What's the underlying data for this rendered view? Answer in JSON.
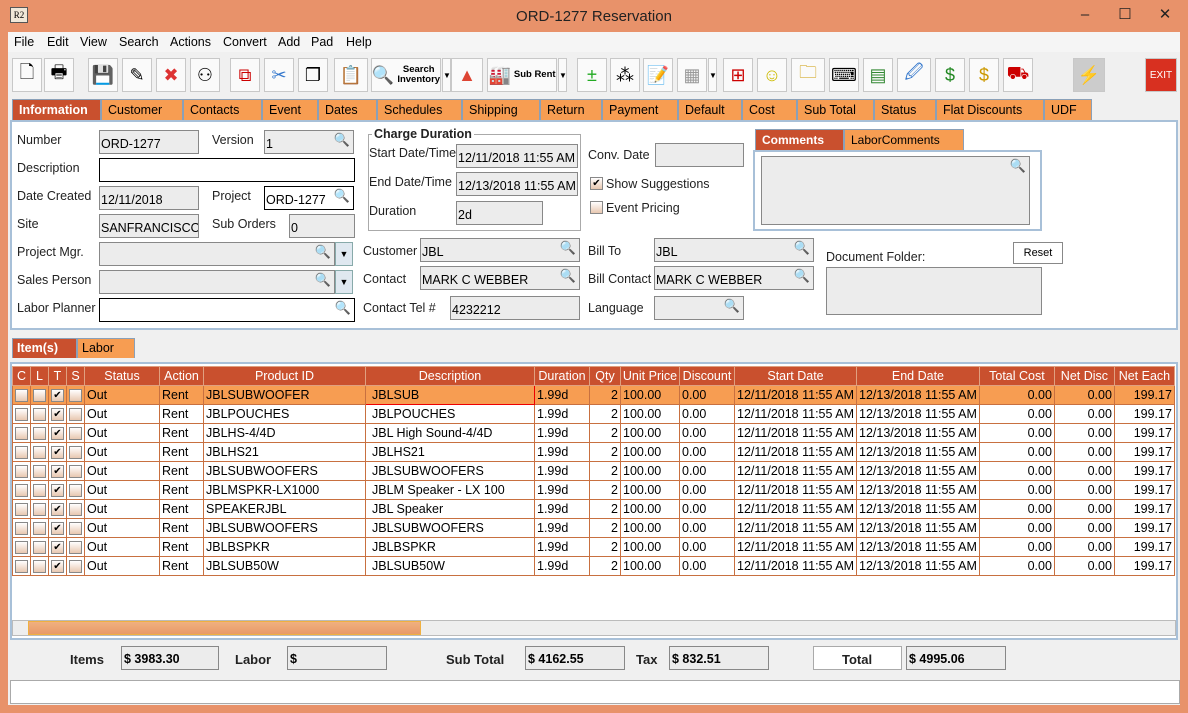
{
  "window": {
    "title": "ORD-1277 Reservation",
    "app_icon": "R2"
  },
  "menu": [
    "File",
    "Edit",
    "View",
    "Search",
    "Actions",
    "Convert",
    "Add",
    "Pad",
    "Help"
  ],
  "toolbar": [
    {
      "icon": "new-document-icon",
      "glyph": "🗋"
    },
    {
      "icon": "print-icon",
      "glyph": "🖶"
    },
    {
      "icon": "save-icon",
      "glyph": "💾"
    },
    {
      "icon": "edit-pencil-icon",
      "glyph": "✎"
    },
    {
      "icon": "delete-icon",
      "glyph": "✖",
      "color": "#d33"
    },
    {
      "icon": "binoculars-icon",
      "glyph": "⚇"
    },
    {
      "icon": "copy-arrow-icon",
      "glyph": "⧉",
      "color": "#c00"
    },
    {
      "icon": "cut-scissors-icon",
      "glyph": "✂",
      "color": "#37c"
    },
    {
      "icon": "copy-icon",
      "glyph": "❐"
    },
    {
      "icon": "paste-icon",
      "glyph": "📋"
    },
    {
      "icon": "search-inventory-icon",
      "glyph": "🔍",
      "label": "Search Inventory",
      "dropdown": true
    },
    {
      "icon": "shapes-icon",
      "glyph": "▲",
      "color": "#d43"
    },
    {
      "icon": "sub-rent-icon",
      "glyph": "🏭",
      "label": "Sub Rent",
      "dropdown": true
    },
    {
      "icon": "add-remove-icon",
      "glyph": "±",
      "color": "#2a2"
    },
    {
      "icon": "help-balls-icon",
      "glyph": "⁂"
    },
    {
      "icon": "notepad-icon",
      "glyph": "📝"
    },
    {
      "icon": "calendar-icon",
      "glyph": "▦",
      "color": "#999",
      "dropdown": true
    },
    {
      "icon": "hierarchy-icon",
      "glyph": "⊞",
      "color": "#c00"
    },
    {
      "icon": "smiley-icon",
      "glyph": "☺",
      "color": "#cb0"
    },
    {
      "icon": "folder-clock-icon",
      "glyph": "🗀",
      "color": "#c90"
    },
    {
      "icon": "key-icon",
      "glyph": "⌨"
    },
    {
      "icon": "stacks-icon",
      "glyph": "▤",
      "color": "#383"
    },
    {
      "icon": "document-edit-icon",
      "glyph": "🖉",
      "color": "#37c"
    },
    {
      "icon": "money-forward-icon",
      "glyph": "$",
      "color": "#282"
    },
    {
      "icon": "money-note-icon",
      "glyph": "$",
      "color": "#c90"
    },
    {
      "icon": "truck-icon",
      "glyph": "⛟",
      "color": "#c00"
    },
    {
      "icon": "lightning-icon",
      "glyph": "⚡",
      "color": "#cb0"
    },
    {
      "icon": "exit-icon",
      "glyph": "EXIT",
      "color": "#fff"
    }
  ],
  "tabs": [
    "Information",
    "Customer",
    "Contacts",
    "Event",
    "Dates",
    "Schedules",
    "Shipping",
    "Return",
    "Payment",
    "Default",
    "Cost",
    "Sub Total",
    "Status",
    "Flat Discounts",
    "UDF"
  ],
  "info": {
    "number_label": "Number",
    "number": "ORD-1277",
    "version_label": "Version",
    "version": "1",
    "description_label": "Description",
    "description": "",
    "date_created_label": "Date Created",
    "date_created": "12/11/2018",
    "project_label": "Project",
    "project": "ORD-1277",
    "site_label": "Site",
    "site": "SANFRANCISCO",
    "sub_orders_label": "Sub Orders",
    "sub_orders": "0",
    "project_mgr_label": "Project Mgr.",
    "project_mgr": "",
    "sales_person_label": "Sales Person",
    "sales_person": "",
    "labor_planner_label": "Labor Planner",
    "labor_planner": "",
    "charge_duration_title": "Charge Duration",
    "start_label": "Start Date/Time",
    "start": "12/11/2018 11:55 AM",
    "end_label": "End Date/Time",
    "end": "12/13/2018 11:55 AM",
    "duration_label": "Duration",
    "duration": "2d",
    "conv_date_label": "Conv. Date",
    "conv_date": "",
    "show_suggestions_label": "Show Suggestions",
    "show_suggestions": true,
    "event_pricing_label": "Event Pricing",
    "event_pricing": false,
    "customer_label": "Customer",
    "customer": "JBL",
    "contact_label": "Contact",
    "contact": "MARK C WEBBER",
    "contact_tel_label": "Contact Tel #",
    "contact_tel": "4232212",
    "bill_to_label": "Bill To",
    "bill_to": "JBL",
    "bill_contact_label": "Bill Contact",
    "bill_contact": "MARK C WEBBER",
    "language_label": "Language",
    "language": "",
    "comments_tabs": [
      "Comments",
      "LaborComments"
    ],
    "comments": "",
    "document_folder_label": "Document Folder:",
    "reset_label": "Reset"
  },
  "item_tabs": [
    "Item(s)",
    "Labor"
  ],
  "grid": {
    "columns": [
      "C",
      "L",
      "T",
      "S",
      "Status",
      "Action",
      "Product ID",
      "Description",
      "Duration",
      "Qty",
      "Unit Price",
      "Discount",
      "Start Date",
      "End Date",
      "Total Cost",
      "Net Disc",
      "Net Each"
    ],
    "rows": [
      [
        "Out",
        "Rent",
        "JBLSUBWOOFER",
        "JBLSUB",
        "1.99d",
        "2",
        "100.00",
        "0.00",
        "12/11/2018 11:55 AM",
        "12/13/2018 11:55 AM",
        "0.00",
        "0.00",
        "199.17"
      ],
      [
        "Out",
        "Rent",
        "JBLPOUCHES",
        "JBLPOUCHES",
        "1.99d",
        "2",
        "100.00",
        "0.00",
        "12/11/2018 11:55 AM",
        "12/13/2018 11:55 AM",
        "0.00",
        "0.00",
        "199.17"
      ],
      [
        "Out",
        "Rent",
        "JBLHS-4/4D",
        "JBL High Sound-4/4D",
        "1.99d",
        "2",
        "100.00",
        "0.00",
        "12/11/2018 11:55 AM",
        "12/13/2018 11:55 AM",
        "0.00",
        "0.00",
        "199.17"
      ],
      [
        "Out",
        "Rent",
        "JBLHS21",
        "JBLHS21",
        "1.99d",
        "2",
        "100.00",
        "0.00",
        "12/11/2018 11:55 AM",
        "12/13/2018 11:55 AM",
        "0.00",
        "0.00",
        "199.17"
      ],
      [
        "Out",
        "Rent",
        "JBLSUBWOOFERS",
        "JBLSUBWOOFERS",
        "1.99d",
        "2",
        "100.00",
        "0.00",
        "12/11/2018 11:55 AM",
        "12/13/2018 11:55 AM",
        "0.00",
        "0.00",
        "199.17"
      ],
      [
        "Out",
        "Rent",
        "JBLMSPKR-LX1000",
        "JBLM Speaker - LX 100",
        "1.99d",
        "2",
        "100.00",
        "0.00",
        "12/11/2018 11:55 AM",
        "12/13/2018 11:55 AM",
        "0.00",
        "0.00",
        "199.17"
      ],
      [
        "Out",
        "Rent",
        "SPEAKERJBL",
        "JBL Speaker",
        "1.99d",
        "2",
        "100.00",
        "0.00",
        "12/11/2018 11:55 AM",
        "12/13/2018 11:55 AM",
        "0.00",
        "0.00",
        "199.17"
      ],
      [
        "Out",
        "Rent",
        "JBLSUBWOOFERS",
        "JBLSUBWOOFERS",
        "1.99d",
        "2",
        "100.00",
        "0.00",
        "12/11/2018 11:55 AM",
        "12/13/2018 11:55 AM",
        "0.00",
        "0.00",
        "199.17"
      ],
      [
        "Out",
        "Rent",
        "JBLBSPKR",
        "JBLBSPKR",
        "1.99d",
        "2",
        "100.00",
        "0.00",
        "12/11/2018 11:55 AM",
        "12/13/2018 11:55 AM",
        "0.00",
        "0.00",
        "199.17"
      ],
      [
        "Out",
        "Rent",
        "JBLSUB50W",
        "JBLSUB50W",
        "1.99d",
        "2",
        "100.00",
        "0.00",
        "12/11/2018 11:55 AM",
        "12/13/2018 11:55 AM",
        "0.00",
        "0.00",
        "199.17"
      ]
    ],
    "t_checked": true,
    "selected_row": 0
  },
  "totals": {
    "items_label": "Items",
    "items": "$ 3983.30",
    "labor_label": "Labor",
    "labor": "$",
    "sub_total_label": "Sub Total",
    "sub_total": "$ 4162.55",
    "tax_label": "Tax",
    "tax": "$ 832.51",
    "total_label": "Total",
    "total": "$ 4995.06"
  },
  "colors": {
    "frame": "#e8926a",
    "tab": "#f79d52",
    "tab_active": "#c9502e",
    "selected_row": "#f79d52"
  }
}
